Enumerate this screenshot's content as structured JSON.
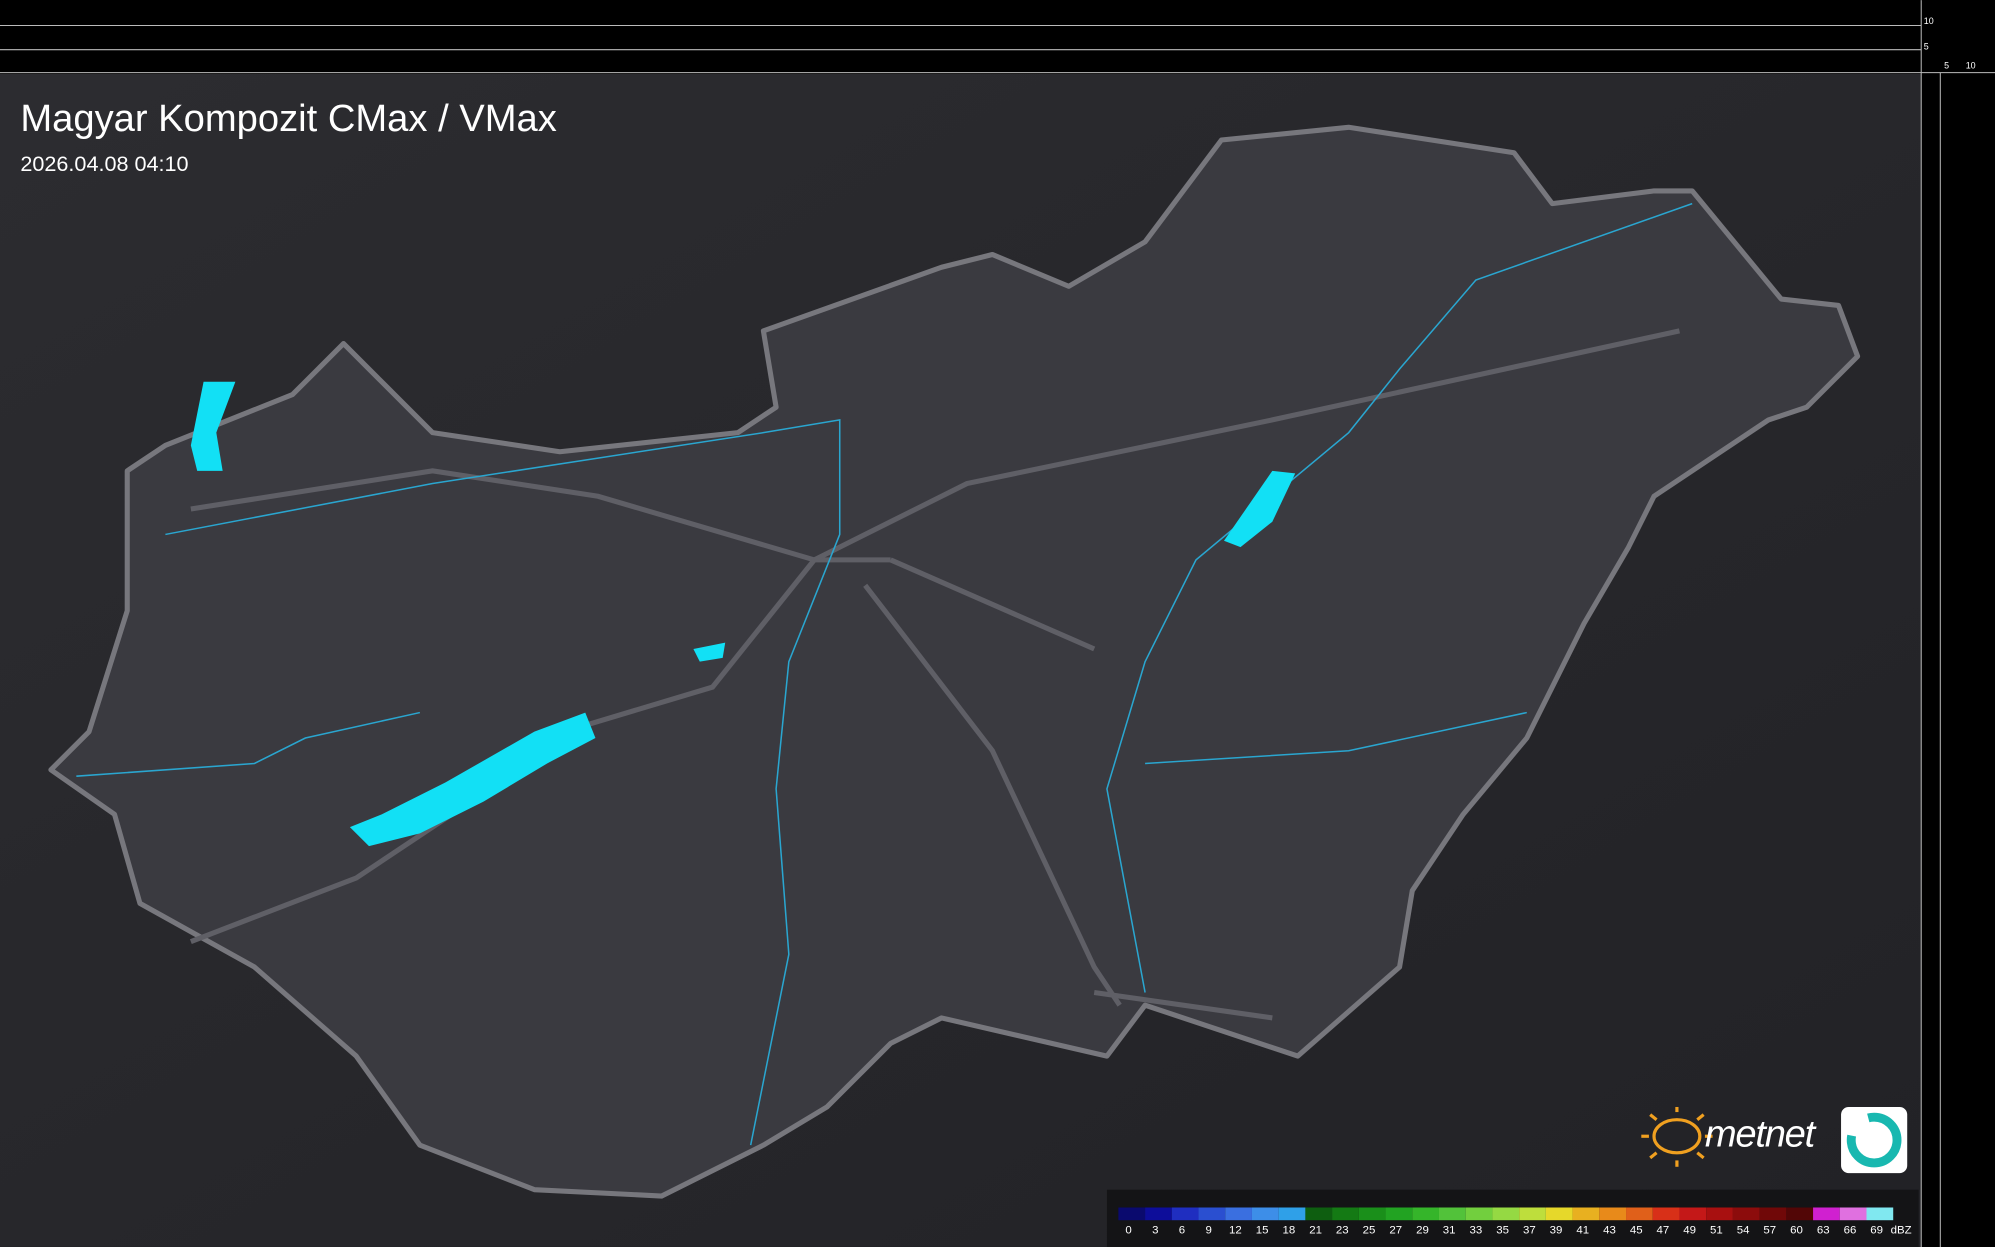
{
  "header": {
    "title": "Magyar Kompozit CMax / VMax",
    "timestamp": "2026.04.08 04:10"
  },
  "frame_labels": {
    "top": [
      "10",
      "5"
    ],
    "right": [
      "5",
      "10"
    ]
  },
  "logo": {
    "text": "metnet"
  },
  "legend": {
    "ticks": [
      "0",
      "3",
      "6",
      "9",
      "12",
      "15",
      "18",
      "21",
      "23",
      "25",
      "27",
      "29",
      "31",
      "33",
      "35",
      "37",
      "39",
      "41",
      "43",
      "45",
      "47",
      "49",
      "51",
      "54",
      "57",
      "60",
      "63",
      "66",
      "69"
    ],
    "unit": "dBZ",
    "colors": [
      "#0a0a6e",
      "#0d0d9a",
      "#1f2ec0",
      "#2a4fd0",
      "#3a6fe0",
      "#3d8ee8",
      "#2fa0e8",
      "#0e5e10",
      "#147a14",
      "#1a8f1a",
      "#22a322",
      "#35b52a",
      "#52c23a",
      "#72cf3e",
      "#95d943",
      "#bede3c",
      "#e6d82a",
      "#e8b020",
      "#e88a1a",
      "#e0601a",
      "#d83018",
      "#c41818",
      "#a81010",
      "#8c0c0c",
      "#700808",
      "#520606",
      "#d020d0",
      "#e070e0",
      "#80e8f0"
    ]
  }
}
